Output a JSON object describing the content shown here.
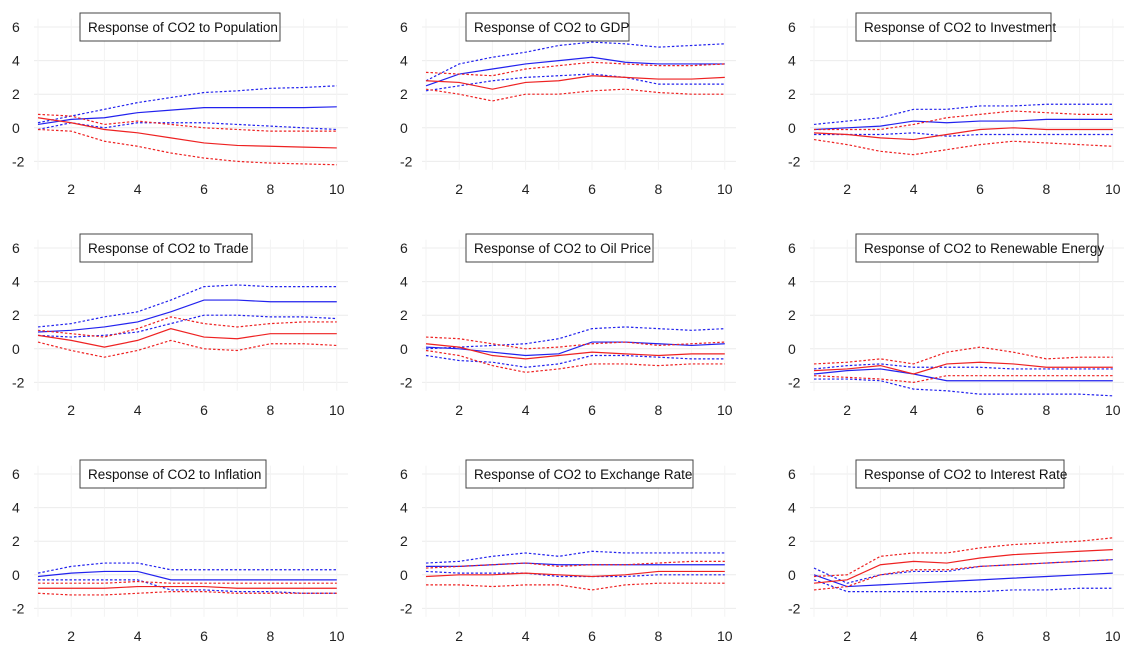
{
  "chart_data": [
    {
      "type": "line",
      "title": "Response of CO2 to Population",
      "x": [
        1,
        2,
        3,
        4,
        5,
        6,
        7,
        8,
        9,
        10
      ],
      "xticks": [
        2,
        4,
        6,
        8,
        10
      ],
      "yticks": [
        6,
        4,
        2,
        0,
        -2
      ],
      "ylim": [
        -2.5,
        6.5
      ],
      "grid": true,
      "series": [
        {
          "color": "#2222ee",
          "style": "dotted",
          "values": [
            0.3,
            0.7,
            1.1,
            1.5,
            1.8,
            2.1,
            2.2,
            2.35,
            2.4,
            2.5
          ]
        },
        {
          "color": "#2222ee",
          "style": "solid",
          "values": [
            0.2,
            0.5,
            0.6,
            0.9,
            1.05,
            1.2,
            1.2,
            1.2,
            1.2,
            1.25
          ]
        },
        {
          "color": "#2222ee",
          "style": "dotted",
          "values": [
            -0.1,
            0.3,
            0.0,
            0.3,
            0.3,
            0.3,
            0.2,
            0.1,
            0.0,
            -0.1
          ]
        },
        {
          "color": "#ee2222",
          "style": "dotted",
          "values": [
            0.8,
            0.7,
            0.2,
            0.4,
            0.2,
            0.0,
            -0.1,
            -0.2,
            -0.2,
            -0.2
          ]
        },
        {
          "color": "#ee2222",
          "style": "solid",
          "values": [
            0.6,
            0.3,
            -0.1,
            -0.3,
            -0.6,
            -0.9,
            -1.05,
            -1.1,
            -1.15,
            -1.2
          ]
        },
        {
          "color": "#ee2222",
          "style": "dotted",
          "values": [
            -0.1,
            -0.2,
            -0.8,
            -1.1,
            -1.5,
            -1.8,
            -2.0,
            -2.1,
            -2.15,
            -2.2
          ]
        }
      ]
    },
    {
      "type": "line",
      "title": "Response of CO2 to GDP",
      "x": [
        1,
        2,
        3,
        4,
        5,
        6,
        7,
        8,
        9,
        10
      ],
      "xticks": [
        2,
        4,
        6,
        8,
        10
      ],
      "yticks": [
        6,
        4,
        2,
        0,
        -2
      ],
      "ylim": [
        -2.5,
        6.5
      ],
      "grid": true,
      "series": [
        {
          "color": "#2222ee",
          "style": "dotted",
          "values": [
            2.8,
            3.8,
            4.2,
            4.5,
            4.9,
            5.1,
            5.0,
            4.8,
            4.9,
            5.0
          ]
        },
        {
          "color": "#2222ee",
          "style": "solid",
          "values": [
            2.5,
            3.2,
            3.5,
            3.8,
            4.0,
            4.2,
            3.9,
            3.8,
            3.8,
            3.8
          ]
        },
        {
          "color": "#2222ee",
          "style": "dotted",
          "values": [
            2.2,
            2.5,
            2.8,
            3.0,
            3.1,
            3.2,
            3.0,
            2.6,
            2.6,
            2.6
          ]
        },
        {
          "color": "#ee2222",
          "style": "dotted",
          "values": [
            3.3,
            3.2,
            3.1,
            3.5,
            3.7,
            3.9,
            3.8,
            3.7,
            3.7,
            3.8
          ]
        },
        {
          "color": "#ee2222",
          "style": "solid",
          "values": [
            2.8,
            2.7,
            2.3,
            2.7,
            2.8,
            3.1,
            3.0,
            2.9,
            2.9,
            3.0
          ]
        },
        {
          "color": "#ee2222",
          "style": "dotted",
          "values": [
            2.3,
            2.0,
            1.6,
            2.0,
            2.0,
            2.2,
            2.3,
            2.1,
            2.0,
            2.0
          ]
        }
      ]
    },
    {
      "type": "line",
      "title": "Response of CO2 to Investment",
      "x": [
        1,
        2,
        3,
        4,
        5,
        6,
        7,
        8,
        9,
        10
      ],
      "xticks": [
        2,
        4,
        6,
        8,
        10
      ],
      "yticks": [
        6,
        4,
        2,
        0,
        -2
      ],
      "ylim": [
        -2.5,
        6.5
      ],
      "grid": true,
      "series": [
        {
          "color": "#2222ee",
          "style": "dotted",
          "values": [
            0.2,
            0.4,
            0.6,
            1.1,
            1.1,
            1.3,
            1.3,
            1.4,
            1.4,
            1.4
          ]
        },
        {
          "color": "#2222ee",
          "style": "solid",
          "values": [
            -0.1,
            0.0,
            0.1,
            0.4,
            0.3,
            0.4,
            0.4,
            0.5,
            0.5,
            0.5
          ]
        },
        {
          "color": "#2222ee",
          "style": "dotted",
          "values": [
            -0.4,
            -0.4,
            -0.4,
            -0.3,
            -0.5,
            -0.4,
            -0.4,
            -0.4,
            -0.4,
            -0.4
          ]
        },
        {
          "color": "#ee2222",
          "style": "dotted",
          "values": [
            -0.1,
            -0.1,
            -0.1,
            0.2,
            0.6,
            0.8,
            1.0,
            0.9,
            0.8,
            0.8
          ]
        },
        {
          "color": "#ee2222",
          "style": "solid",
          "values": [
            -0.3,
            -0.4,
            -0.6,
            -0.7,
            -0.4,
            -0.1,
            0.0,
            -0.1,
            -0.1,
            -0.1
          ]
        },
        {
          "color": "#ee2222",
          "style": "dotted",
          "values": [
            -0.7,
            -1.0,
            -1.4,
            -1.6,
            -1.3,
            -1.0,
            -0.8,
            -0.9,
            -1.0,
            -1.1
          ]
        }
      ]
    },
    {
      "type": "line",
      "title": "Response of CO2 to Trade",
      "x": [
        1,
        2,
        3,
        4,
        5,
        6,
        7,
        8,
        9,
        10
      ],
      "xticks": [
        2,
        4,
        6,
        8,
        10
      ],
      "yticks": [
        6,
        4,
        2,
        0,
        -2
      ],
      "ylim": [
        -2.5,
        6.5
      ],
      "grid": true,
      "series": [
        {
          "color": "#2222ee",
          "style": "dotted",
          "values": [
            1.3,
            1.5,
            1.9,
            2.2,
            2.9,
            3.7,
            3.8,
            3.7,
            3.7,
            3.7
          ]
        },
        {
          "color": "#2222ee",
          "style": "solid",
          "values": [
            1.0,
            1.1,
            1.3,
            1.6,
            2.2,
            2.9,
            2.9,
            2.8,
            2.8,
            2.8
          ]
        },
        {
          "color": "#2222ee",
          "style": "dotted",
          "values": [
            0.8,
            0.7,
            0.8,
            1.0,
            1.5,
            2.0,
            2.0,
            1.9,
            1.9,
            1.8
          ]
        },
        {
          "color": "#ee2222",
          "style": "dotted",
          "values": [
            1.1,
            0.9,
            0.7,
            1.2,
            1.9,
            1.5,
            1.3,
            1.5,
            1.6,
            1.6
          ]
        },
        {
          "color": "#ee2222",
          "style": "solid",
          "values": [
            0.8,
            0.5,
            0.1,
            0.5,
            1.2,
            0.7,
            0.6,
            0.9,
            0.9,
            0.9
          ]
        },
        {
          "color": "#ee2222",
          "style": "dotted",
          "values": [
            0.4,
            -0.1,
            -0.5,
            -0.1,
            0.5,
            0.0,
            -0.1,
            0.3,
            0.3,
            0.2
          ]
        }
      ]
    },
    {
      "type": "line",
      "title": "Response of CO2 to Oil Price",
      "x": [
        1,
        2,
        3,
        4,
        5,
        6,
        7,
        8,
        9,
        10
      ],
      "xticks": [
        2,
        4,
        6,
        8,
        10
      ],
      "yticks": [
        6,
        4,
        2,
        0,
        -2
      ],
      "ylim": [
        -2.5,
        6.5
      ],
      "grid": true,
      "series": [
        {
          "color": "#2222ee",
          "style": "dotted",
          "values": [
            0.0,
            0.1,
            0.2,
            0.3,
            0.6,
            1.2,
            1.3,
            1.2,
            1.1,
            1.2
          ]
        },
        {
          "color": "#2222ee",
          "style": "solid",
          "values": [
            0.1,
            0.0,
            -0.2,
            -0.4,
            -0.3,
            0.4,
            0.4,
            0.3,
            0.2,
            0.3
          ]
        },
        {
          "color": "#2222ee",
          "style": "dotted",
          "values": [
            -0.4,
            -0.7,
            -0.8,
            -1.1,
            -0.9,
            -0.4,
            -0.4,
            -0.5,
            -0.6,
            -0.6
          ]
        },
        {
          "color": "#ee2222",
          "style": "dotted",
          "values": [
            0.7,
            0.6,
            0.3,
            0.0,
            0.1,
            0.3,
            0.4,
            0.2,
            0.3,
            0.4
          ]
        },
        {
          "color": "#ee2222",
          "style": "solid",
          "values": [
            0.3,
            0.1,
            -0.4,
            -0.6,
            -0.4,
            -0.2,
            -0.3,
            -0.4,
            -0.3,
            -0.3
          ]
        },
        {
          "color": "#ee2222",
          "style": "dotted",
          "values": [
            -0.1,
            -0.4,
            -1.0,
            -1.4,
            -1.2,
            -0.9,
            -0.9,
            -1.0,
            -0.9,
            -0.9
          ]
        }
      ]
    },
    {
      "type": "line",
      "title": "Response of CO2 to Renewable Energy",
      "x": [
        1,
        2,
        3,
        4,
        5,
        6,
        7,
        8,
        9,
        10
      ],
      "xticks": [
        2,
        4,
        6,
        8,
        10
      ],
      "yticks": [
        6,
        4,
        2,
        0,
        -2
      ],
      "ylim": [
        -2.5,
        6.5
      ],
      "grid": true,
      "series": [
        {
          "color": "#2222ee",
          "style": "dotted",
          "values": [
            -1.2,
            -1.0,
            -0.9,
            -1.1,
            -1.1,
            -1.1,
            -1.2,
            -1.2,
            -1.2,
            -1.2
          ]
        },
        {
          "color": "#2222ee",
          "style": "solid",
          "values": [
            -1.5,
            -1.3,
            -1.2,
            -1.5,
            -1.9,
            -1.9,
            -1.9,
            -1.9,
            -1.9,
            -1.9
          ]
        },
        {
          "color": "#2222ee",
          "style": "dotted",
          "values": [
            -1.8,
            -1.8,
            -1.9,
            -2.4,
            -2.5,
            -2.7,
            -2.7,
            -2.7,
            -2.7,
            -2.8
          ]
        },
        {
          "color": "#ee2222",
          "style": "dotted",
          "values": [
            -0.9,
            -0.8,
            -0.6,
            -0.9,
            -0.2,
            0.1,
            -0.2,
            -0.6,
            -0.5,
            -0.5
          ]
        },
        {
          "color": "#ee2222",
          "style": "solid",
          "values": [
            -1.3,
            -1.2,
            -1.0,
            -1.5,
            -0.9,
            -0.8,
            -0.9,
            -1.1,
            -1.1,
            -1.1
          ]
        },
        {
          "color": "#ee2222",
          "style": "dotted",
          "values": [
            -1.6,
            -1.7,
            -1.8,
            -2.0,
            -1.6,
            -1.6,
            -1.6,
            -1.6,
            -1.6,
            -1.6
          ]
        }
      ]
    },
    {
      "type": "line",
      "title": "Response of CO2 to Inflation",
      "x": [
        1,
        2,
        3,
        4,
        5,
        6,
        7,
        8,
        9,
        10
      ],
      "xticks": [
        2,
        4,
        6,
        8,
        10
      ],
      "yticks": [
        6,
        4,
        2,
        0,
        -2
      ],
      "ylim": [
        -2.5,
        6.5
      ],
      "grid": true,
      "series": [
        {
          "color": "#2222ee",
          "style": "dotted",
          "values": [
            0.1,
            0.5,
            0.7,
            0.7,
            0.3,
            0.3,
            0.3,
            0.3,
            0.3,
            0.3
          ]
        },
        {
          "color": "#2222ee",
          "style": "solid",
          "values": [
            -0.1,
            0.1,
            0.2,
            0.2,
            -0.3,
            -0.3,
            -0.3,
            -0.3,
            -0.3,
            -0.3
          ]
        },
        {
          "color": "#2222ee",
          "style": "dotted",
          "values": [
            -0.3,
            -0.3,
            -0.3,
            -0.3,
            -0.9,
            -0.9,
            -1.0,
            -1.0,
            -1.1,
            -1.1
          ]
        },
        {
          "color": "#ee2222",
          "style": "dotted",
          "values": [
            -0.5,
            -0.5,
            -0.5,
            -0.4,
            -0.5,
            -0.5,
            -0.5,
            -0.5,
            -0.5,
            -0.5
          ]
        },
        {
          "color": "#ee2222",
          "style": "solid",
          "values": [
            -0.8,
            -0.8,
            -0.8,
            -0.7,
            -0.7,
            -0.7,
            -0.8,
            -0.8,
            -0.8,
            -0.8
          ]
        },
        {
          "color": "#ee2222",
          "style": "dotted",
          "values": [
            -1.1,
            -1.2,
            -1.2,
            -1.1,
            -1.0,
            -1.0,
            -1.1,
            -1.1,
            -1.1,
            -1.1
          ]
        }
      ]
    },
    {
      "type": "line",
      "title": "Response of CO2 to Exchange Rate",
      "x": [
        1,
        2,
        3,
        4,
        5,
        6,
        7,
        8,
        9,
        10
      ],
      "xticks": [
        2,
        4,
        6,
        8,
        10
      ],
      "yticks": [
        6,
        4,
        2,
        0,
        -2
      ],
      "ylim": [
        -2.5,
        6.5
      ],
      "grid": true,
      "series": [
        {
          "color": "#2222ee",
          "style": "dotted",
          "values": [
            0.7,
            0.8,
            1.1,
            1.3,
            1.1,
            1.4,
            1.3,
            1.3,
            1.3,
            1.3
          ]
        },
        {
          "color": "#2222ee",
          "style": "solid",
          "values": [
            0.5,
            0.5,
            0.6,
            0.7,
            0.6,
            0.6,
            0.6,
            0.6,
            0.6,
            0.6
          ]
        },
        {
          "color": "#2222ee",
          "style": "dotted",
          "values": [
            0.2,
            0.1,
            0.1,
            0.1,
            -0.1,
            -0.1,
            -0.1,
            0.0,
            0.0,
            0.0
          ]
        },
        {
          "color": "#ee2222",
          "style": "dotted",
          "values": [
            0.4,
            0.5,
            0.6,
            0.7,
            0.5,
            0.6,
            0.6,
            0.7,
            0.8,
            0.8
          ]
        },
        {
          "color": "#ee2222",
          "style": "solid",
          "values": [
            -0.1,
            0.0,
            0.0,
            0.1,
            0.0,
            -0.1,
            0.0,
            0.2,
            0.2,
            0.2
          ]
        },
        {
          "color": "#ee2222",
          "style": "dotted",
          "values": [
            -0.6,
            -0.6,
            -0.7,
            -0.6,
            -0.6,
            -0.9,
            -0.6,
            -0.5,
            -0.5,
            -0.5
          ]
        }
      ]
    },
    {
      "type": "line",
      "title": "Response of CO2 to Interest Rate",
      "x": [
        1,
        2,
        3,
        4,
        5,
        6,
        7,
        8,
        9,
        10
      ],
      "xticks": [
        2,
        4,
        6,
        8,
        10
      ],
      "yticks": [
        6,
        4,
        2,
        0,
        -2
      ],
      "ylim": [
        -2.5,
        6.5
      ],
      "grid": true,
      "series": [
        {
          "color": "#2222ee",
          "style": "dotted",
          "values": [
            0.4,
            -0.5,
            0.0,
            0.2,
            0.2,
            0.5,
            0.6,
            0.7,
            0.8,
            0.9
          ]
        },
        {
          "color": "#2222ee",
          "style": "solid",
          "values": [
            0.0,
            -0.7,
            -0.6,
            -0.5,
            -0.4,
            -0.3,
            -0.2,
            -0.1,
            0.0,
            0.1
          ]
        },
        {
          "color": "#2222ee",
          "style": "dotted",
          "values": [
            -0.3,
            -1.0,
            -1.0,
            -1.0,
            -1.0,
            -1.0,
            -0.9,
            -0.9,
            -0.8,
            -0.8
          ]
        },
        {
          "color": "#ee2222",
          "style": "dotted",
          "values": [
            -0.1,
            0.0,
            1.1,
            1.3,
            1.3,
            1.6,
            1.8,
            1.9,
            2.0,
            2.2
          ]
        },
        {
          "color": "#ee2222",
          "style": "solid",
          "values": [
            -0.5,
            -0.3,
            0.6,
            0.8,
            0.7,
            1.0,
            1.2,
            1.3,
            1.4,
            1.5
          ]
        },
        {
          "color": "#ee2222",
          "style": "dotted",
          "values": [
            -0.9,
            -0.7,
            0.0,
            0.3,
            0.3,
            0.5,
            0.6,
            0.7,
            0.8,
            0.9
          ]
        }
      ]
    }
  ]
}
